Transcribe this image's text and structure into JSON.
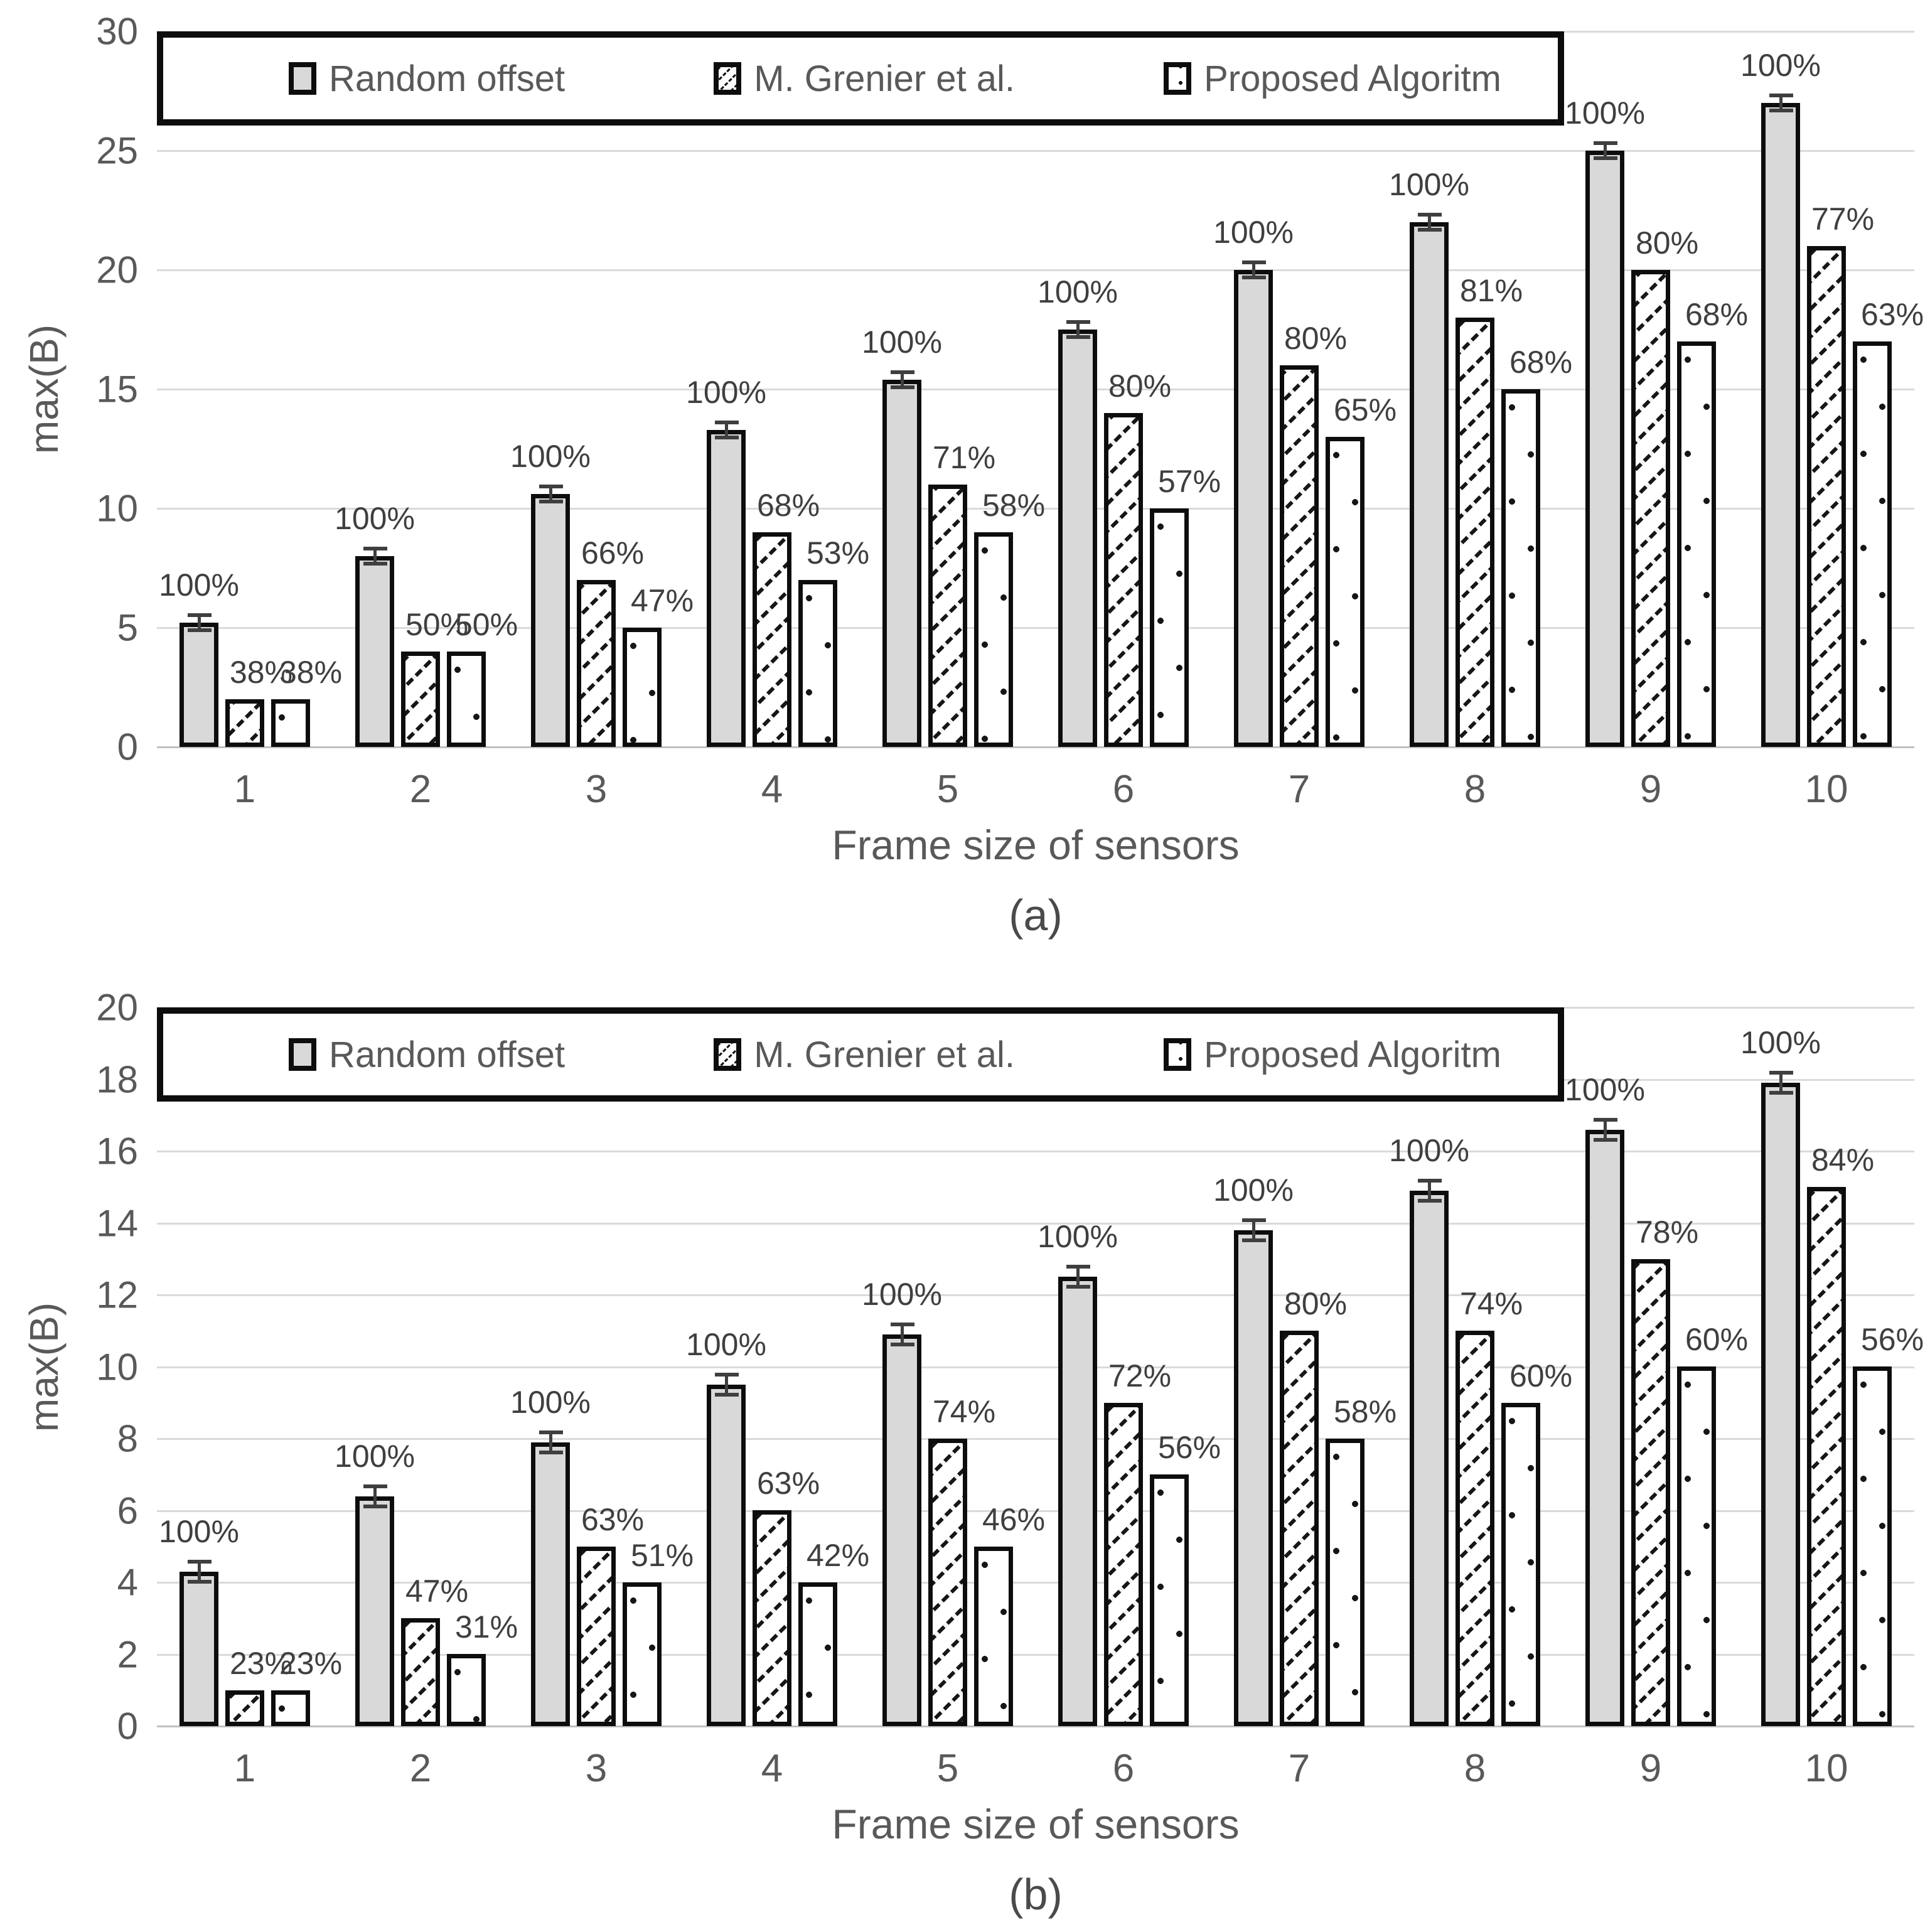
{
  "colors": {
    "bar_border": "#0d0d0d",
    "solid_fill": "#d9d9d9",
    "grid": "#dadada",
    "axis_text": "#595959",
    "data_label_text": "#3f3f3f",
    "legend_border": "#0d0d0d",
    "background": "#ffffff"
  },
  "chart_data": [
    {
      "type": "bar",
      "caption": "(a)",
      "xlabel": "Frame size of sensors",
      "ylabel": "max(B)",
      "ylim": [
        0,
        30
      ],
      "ystep": 5,
      "grid": "horizontal",
      "legend_position": "top-inside",
      "categories": [
        "1",
        "2",
        "3",
        "4",
        "5",
        "6",
        "7",
        "8",
        "9",
        "10"
      ],
      "series": [
        {
          "name": "Random offset",
          "pattern": "solid",
          "error": 0.35,
          "values": [
            5.2,
            8,
            10.6,
            13.3,
            15.4,
            17.5,
            20,
            22,
            25,
            27
          ],
          "labels": [
            "100%",
            "100%",
            "100%",
            "100%",
            "100%",
            "100%",
            "100%",
            "100%",
            "100%",
            "100%"
          ]
        },
        {
          "name": "M. Grenier et al.",
          "pattern": "hatch",
          "values": [
            2,
            4,
            7,
            9,
            11,
            14,
            16,
            18,
            20,
            21
          ],
          "labels": [
            "38%",
            "50%",
            "66%",
            "68%",
            "71%",
            "80%",
            "80%",
            "81%",
            "80%",
            "77%"
          ]
        },
        {
          "name": "Proposed Algoritm",
          "pattern": "dots",
          "values": [
            2,
            4,
            5,
            7,
            9,
            10,
            13,
            15,
            17,
            17
          ],
          "labels": [
            "38%",
            "50%",
            "47%",
            "53%",
            "58%",
            "57%",
            "65%",
            "68%",
            "68%",
            "63%"
          ]
        }
      ]
    },
    {
      "type": "bar",
      "caption": "(b)",
      "xlabel": "Frame size of sensors",
      "ylabel": "max(B)",
      "ylim": [
        0,
        20
      ],
      "ystep": 2,
      "grid": "horizontal",
      "legend_position": "top-inside",
      "categories": [
        "1",
        "2",
        "3",
        "4",
        "5",
        "6",
        "7",
        "8",
        "9",
        "10"
      ],
      "series": [
        {
          "name": "Random offset",
          "pattern": "solid",
          "error": 0.3,
          "values": [
            4.3,
            6.4,
            7.9,
            9.5,
            10.9,
            12.5,
            13.8,
            14.9,
            16.6,
            17.9
          ],
          "labels": [
            "100%",
            "100%",
            "100%",
            "100%",
            "100%",
            "100%",
            "100%",
            "100%",
            "100%",
            "100%"
          ]
        },
        {
          "name": "M. Grenier et al.",
          "pattern": "hatch",
          "values": [
            1,
            3,
            5,
            6,
            8,
            9,
            11,
            11,
            13,
            15
          ],
          "labels": [
            "23%",
            "47%",
            "63%",
            "63%",
            "74%",
            "72%",
            "80%",
            "74%",
            "78%",
            "84%"
          ]
        },
        {
          "name": "Proposed Algoritm",
          "pattern": "dots",
          "values": [
            1,
            2,
            4,
            4,
            5,
            7,
            8,
            9,
            10,
            10
          ],
          "labels": [
            "23%",
            "31%",
            "51%",
            "42%",
            "46%",
            "56%",
            "58%",
            "60%",
            "60%",
            "56%"
          ]
        }
      ]
    }
  ]
}
